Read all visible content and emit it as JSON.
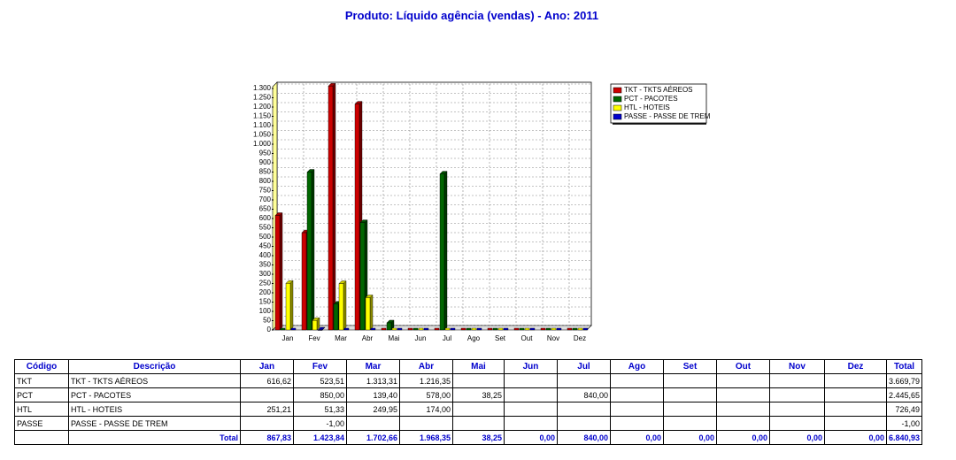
{
  "chart_data": {
    "type": "bar",
    "title": "Produto: Líquido agência (vendas) - Ano: 2011",
    "categories": [
      "Jan",
      "Fev",
      "Mar",
      "Abr",
      "Mai",
      "Jun",
      "Jul",
      "Ago",
      "Set",
      "Out",
      "Nov",
      "Dez"
    ],
    "series": [
      {
        "name": "TKT - TKTS AÉREOS",
        "color": "#cc0000",
        "values": [
          616.62,
          523.51,
          1313.31,
          1216.35,
          null,
          null,
          null,
          null,
          null,
          null,
          null,
          null
        ]
      },
      {
        "name": "PCT - PACOTES",
        "color": "#006600",
        "values": [
          null,
          850,
          139.4,
          578,
          38.25,
          null,
          840,
          null,
          null,
          null,
          null,
          null
        ]
      },
      {
        "name": "HTL - HOTEIS",
        "color": "#ffff00",
        "values": [
          251.21,
          51.33,
          249.95,
          174,
          null,
          null,
          null,
          null,
          null,
          null,
          null,
          null
        ]
      },
      {
        "name": "PASSE - PASSE DE TREM",
        "color": "#0000cc",
        "values": [
          null,
          -1,
          null,
          null,
          null,
          null,
          null,
          null,
          null,
          null,
          null,
          null
        ]
      }
    ],
    "ylim": [
      0,
      1300
    ],
    "yticks": [
      0,
      50,
      100,
      150,
      200,
      250,
      300,
      350,
      400,
      450,
      500,
      550,
      600,
      650,
      700,
      750,
      800,
      850,
      900,
      950,
      {
        "value": 1000,
        "label": "1.000"
      },
      {
        "value": 1050,
        "label": "1.050"
      },
      {
        "value": 1100,
        "label": "1.100"
      },
      {
        "value": 1150,
        "label": "1.150"
      },
      {
        "value": 1200,
        "label": "1.200"
      },
      {
        "value": 1250,
        "label": "1.250"
      },
      {
        "value": 1300,
        "label": "1.300"
      }
    ],
    "grid": true,
    "legend": "right"
  },
  "table": {
    "header": [
      "Código",
      "Descrição",
      "Jan",
      "Fev",
      "Mar",
      "Abr",
      "Mai",
      "Jun",
      "Jul",
      "Ago",
      "Set",
      "Out",
      "Nov",
      "Dez",
      "Total"
    ],
    "rows": [
      [
        "TKT",
        "TKT - TKTS AÉREOS",
        "616,62",
        "523,51",
        "1.313,31",
        "1.216,35",
        null,
        null,
        null,
        null,
        null,
        null,
        null,
        null,
        "3.669,79"
      ],
      [
        "PCT",
        "PCT - PACOTES",
        null,
        "850,00",
        "139,40",
        "578,00",
        "38,25",
        null,
        "840,00",
        null,
        null,
        null,
        null,
        null,
        "2.445,65"
      ],
      [
        "HTL",
        "HTL - HOTEIS",
        "251,21",
        "51,33",
        "249,95",
        "174,00",
        null,
        null,
        null,
        null,
        null,
        null,
        null,
        null,
        "726,49"
      ],
      [
        "PASSE",
        "PASSE - PASSE DE TREM",
        null,
        "-1,00",
        null,
        null,
        null,
        null,
        null,
        null,
        null,
        null,
        null,
        null,
        "-1,00"
      ]
    ],
    "total": {
      "label": "Total",
      "values": [
        "867,83",
        "1.423,84",
        "1.702,66",
        "1.968,35",
        "38,25",
        "0,00",
        "840,00",
        "0,00",
        "0,00",
        "0,00",
        "0,00",
        "0,00",
        "6.840,93"
      ]
    }
  }
}
